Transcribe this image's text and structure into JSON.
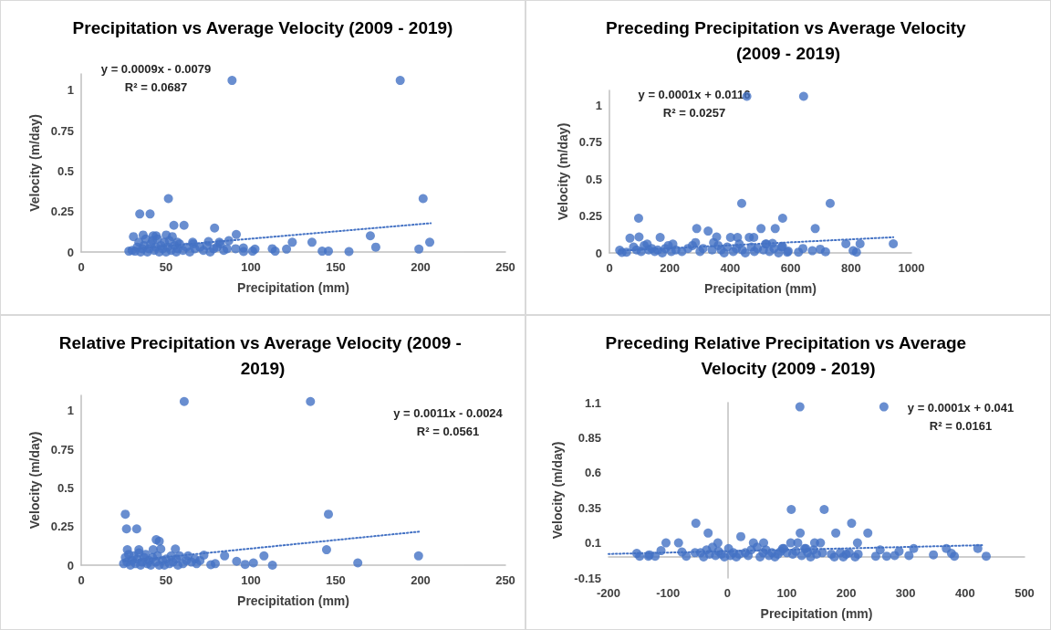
{
  "chart_data": [
    {
      "type": "scatter",
      "title": "Precipitation vs Average Velocity (2009 - 2019)",
      "xlabel": "Precipitation (mm)",
      "ylabel": "Velocity (m/day)",
      "xlim": [
        0,
        250
      ],
      "xticks": [
        0,
        50,
        100,
        150,
        200,
        250
      ],
      "ylim": [
        0,
        1.1
      ],
      "yticks": [
        0,
        0.25,
        0.5,
        0.75,
        1
      ],
      "annotations": [
        "y = 0.0009x - 0.0079",
        "R² = 0.0687"
      ],
      "series": [
        {
          "color": "#4472c4",
          "marker": "circle",
          "x": [
            88.9,
            188,
            51.4,
            201.5,
            34.5,
            40.6,
            54.6,
            60.6,
            78.6,
            91.4,
            170.4,
            173.6,
            199,
            205.4,
            136,
            124.4,
            121,
            112.6,
            114.3,
            142,
            145.7,
            157.8,
            102.4,
            101,
            95.6,
            95.7,
            91,
            87,
            81.4,
            75,
            65.7,
            30.8,
            36.5,
            42.4,
            44.2,
            50.1,
            53.7,
            56.7,
            28.1,
            31.7,
            30,
            33,
            34,
            35,
            36,
            37,
            38,
            39,
            40,
            41,
            42,
            43,
            44,
            45,
            46,
            47,
            48,
            49,
            50,
            51,
            52,
            53,
            55,
            56,
            57,
            58,
            60,
            62,
            64,
            66,
            67,
            70,
            72,
            74,
            76,
            78,
            80,
            82,
            84,
            86
          ],
          "values": [
            1.06,
            1.06,
            0.33,
            0.33,
            0.235,
            0.235,
            0.165,
            0.165,
            0.148,
            0.108,
            0.1,
            0.03,
            0.018,
            0.06,
            0.06,
            0.06,
            0.018,
            0.02,
            0.005,
            0.005,
            0.005,
            0.003,
            0.018,
            0.005,
            0.025,
            0.003,
            0.02,
            0.07,
            0.06,
            0.065,
            0.06,
            0.095,
            0.105,
            0.1,
            0.1,
            0.105,
            0.095,
            0.06,
            0.005,
            0.005,
            0.01,
            0.03,
            0.06,
            0,
            0.02,
            0.04,
            0.08,
            0,
            0.02,
            0.05,
            0.07,
            0.01,
            0.03,
            0.08,
            0,
            0.04,
            0.02,
            0.06,
            0,
            0.03,
            0.07,
            0.01,
            0.04,
            0,
            0.02,
            0.05,
            0.01,
            0.03,
            0,
            0.05,
            0.02,
            0.03,
            0.01,
            0.04,
            0,
            0.02,
            0.03,
            0.05,
            0.01,
            0.02
          ]
        },
        {
          "type": "line",
          "color": "#4472c4",
          "line_style": "dotted",
          "x": [
            28,
            206
          ],
          "values": [
            0.017,
            0.178
          ]
        }
      ]
    },
    {
      "type": "scatter",
      "title": "Preceding Precipitation vs Average Velocity (2009 - 2019)",
      "xlabel": "Precipitation (mm)",
      "ylabel": "Velocity (m/day)",
      "xlim": [
        0,
        1000
      ],
      "xticks": [
        0,
        200,
        400,
        600,
        800,
        1000
      ],
      "ylim": [
        0,
        1.1
      ],
      "yticks": [
        0,
        0.25,
        0.5,
        0.75,
        1
      ],
      "annotations": [
        "y = 0.0001x + 0.0116",
        "R² = 0.0257"
      ],
      "series": [
        {
          "color": "#4472c4",
          "marker": "circle",
          "x": [
            455,
            643,
            438,
            731,
            96.6,
            573.6,
            289,
            502,
            549,
            681.5,
            326.8,
            98,
            168,
            401,
            424,
            463,
            478,
            355,
            68,
            783,
            830,
            940,
            807,
            818,
            715.5,
            698,
            672,
            640.8,
            626,
            592,
            589,
            573,
            540,
            517,
            34,
            56.6,
            41.5,
            80,
            90,
            105,
            115,
            125,
            130,
            140,
            150,
            160,
            175,
            185,
            195,
            205,
            210,
            220,
            240,
            260,
            275,
            285,
            300,
            310,
            340,
            345,
            360,
            370,
            380,
            390,
            410,
            420,
            430,
            440,
            450,
            470,
            480,
            490,
            510,
            520,
            530,
            545,
            560,
            570
          ],
          "values": [
            1.06,
            1.06,
            0.335,
            0.335,
            0.235,
            0.235,
            0.165,
            0.165,
            0.165,
            0.165,
            0.148,
            0.108,
            0.105,
            0.105,
            0.105,
            0.105,
            0.105,
            0.108,
            0.1,
            0.062,
            0.062,
            0.062,
            0.015,
            0.005,
            0.008,
            0.025,
            0.015,
            0.03,
            0.005,
            0.012,
            0.005,
            0.045,
            0.065,
            0.06,
            0.018,
            0.005,
            0.003,
            0.04,
            0.02,
            0.01,
            0.05,
            0.06,
            0.02,
            0.03,
            0.01,
            0.02,
            0,
            0.03,
            0.05,
            0.01,
            0.06,
            0.02,
            0.01,
            0.03,
            0.05,
            0.07,
            0.01,
            0.03,
            0.02,
            0.07,
            0.05,
            0.02,
            0,
            0.04,
            0.01,
            0.03,
            0.06,
            0.02,
            0,
            0.04,
            0.01,
            0.03,
            0.02,
            0.06,
            0.01,
            0.03,
            0,
            0.04
          ]
        },
        {
          "type": "line",
          "color": "#4472c4",
          "line_style": "dotted",
          "x": [
            34,
            940
          ],
          "values": [
            0.015,
            0.106
          ]
        }
      ]
    },
    {
      "type": "scatter",
      "title": "Relative Precipitation vs Average Velocity (2009 - 2019)",
      "xlabel": "Precipitation (mm)",
      "ylabel": "Velocity (m/day)",
      "xlim": [
        0,
        250
      ],
      "xticks": [
        0,
        50,
        100,
        150,
        200,
        250
      ],
      "ylim": [
        0,
        1.1
      ],
      "yticks": [
        0,
        0.25,
        0.5,
        0.75,
        1
      ],
      "annotations": [
        "y = 0.0011x - 0.0024",
        "R² = 0.0561"
      ],
      "series": [
        {
          "color": "#4472c4",
          "marker": "circle",
          "x": [
            60.7,
            135.1,
            26,
            145.7,
            26.7,
            32.7,
            44.2,
            46,
            144.6,
            198.8,
            163,
            112.7,
            107.7,
            101.5,
            96.6,
            91.6,
            84.5,
            79,
            76.4,
            72.3,
            46.9,
            55.5,
            27.2,
            34,
            42.4,
            25,
            26,
            27,
            28,
            29,
            30,
            31,
            32,
            33,
            34,
            35,
            36,
            37,
            38,
            39,
            40,
            41,
            42,
            44,
            45,
            46,
            48,
            49,
            50,
            52,
            53,
            54,
            56,
            57,
            58,
            60,
            62,
            63,
            65,
            67,
            68,
            70
          ],
          "values": [
            1.06,
            1.06,
            0.33,
            0.33,
            0.235,
            0.235,
            0.165,
            0.155,
            0.1,
            0.06,
            0.015,
            0,
            0.06,
            0.015,
            0.005,
            0.025,
            0.06,
            0.01,
            0.003,
            0.065,
            0.105,
            0.105,
            0.1,
            0.1,
            0.1,
            0.01,
            0.05,
            0.02,
            0.07,
            0,
            0.03,
            0.06,
            0.01,
            0.04,
            0.08,
            0,
            0.02,
            0.05,
            0.07,
            0.01,
            0.03,
            0,
            0.05,
            0.02,
            0.06,
            0,
            0.03,
            0,
            0.04,
            0.01,
            0.06,
            0.02,
            0.04,
            0,
            0.06,
            0.01,
            0.03,
            0.06,
            0.02,
            0.04,
            0.01,
            0.03
          ]
        },
        {
          "type": "line",
          "color": "#4472c4",
          "line_style": "dotted",
          "x": [
            25,
            199
          ],
          "values": [
            0.025,
            0.217
          ]
        }
      ]
    },
    {
      "type": "scatter",
      "title": "Preceding Relative Precipitation vs Average Velocity (2009 - 2019)",
      "xlabel": "Precipitation (mm)",
      "ylabel": "Velocity (m/day)",
      "xlim": [
        -200,
        500
      ],
      "xticks": [
        -200,
        -100,
        0,
        100,
        200,
        300,
        400,
        500
      ],
      "ylim": [
        -0.15,
        1.1
      ],
      "yticks": [
        -0.15,
        0.1,
        0.35,
        0.6,
        0.85,
        1.1
      ],
      "annotations": [
        "y = 0.0001x + 0.041",
        "R² = 0.0161"
      ],
      "series": [
        {
          "color": "#4472c4",
          "marker": "circle",
          "x": [
            122,
            263.4,
            107.5,
            162.9,
            -53,
            209,
            -32.4,
            22.6,
            122.5,
            182.4,
            236.3,
            -103.3,
            -82.2,
            -16,
            43.8,
            61,
            106.6,
            118.4,
            146.8,
            156.6,
            218.9,
            -111.7,
            2,
            93,
            132,
            257,
            313.5,
            368.4,
            421.4,
            288.9,
            377,
            382,
            435.5,
            346.7,
            305.5,
            281.5,
            268,
            249.6,
            -152.5,
            -147.6,
            -132.9,
            -131.4,
            -121.6,
            -76.5,
            -69.2,
            -54.4,
            -45,
            -40,
            -35,
            -30,
            -25,
            -20,
            -15,
            -10,
            -5,
            5,
            10,
            15,
            20,
            30,
            35,
            40,
            50,
            55,
            60,
            65,
            70,
            75,
            80,
            85,
            90,
            95,
            100,
            110,
            115,
            125,
            130,
            135,
            140,
            145,
            150,
            160,
            175,
            180,
            190,
            195,
            200,
            205,
            215,
            220
          ],
          "values": [
            1.07,
            1.07,
            0.338,
            0.338,
            0.24,
            0.24,
            0.17,
            0.145,
            0.17,
            0.17,
            0.17,
            0.1,
            0.1,
            0.1,
            0.1,
            0.1,
            0.1,
            0.1,
            0.1,
            0.1,
            0.1,
            0.045,
            0.06,
            0.06,
            0.06,
            0.05,
            0.06,
            0.06,
            0.06,
            0.04,
            0.025,
            0.005,
            0.005,
            0.015,
            0.01,
            0.01,
            0.005,
            0.005,
            0.025,
            0.005,
            0.005,
            0.015,
            0.005,
            0.035,
            0.005,
            0.03,
            0.03,
            0,
            0.05,
            0.02,
            0.07,
            0.01,
            0.04,
            0.02,
            0,
            0.01,
            0.03,
            0,
            0.02,
            0.03,
            0.01,
            0.05,
            0.07,
            0,
            0.03,
            0.05,
            0.01,
            0.03,
            0,
            0.02,
            0.04,
            0.06,
            0.03,
            0.02,
            0.04,
            0.01,
            0.06,
            0.03,
            0,
            0.05,
            0.02,
            0.03,
            0.02,
            0,
            0.03,
            0,
            0.02,
            0.03,
            0,
            0.02
          ]
        },
        {
          "type": "line",
          "color": "#4472c4",
          "line_style": "dotted",
          "x": [
            -200,
            432
          ],
          "values": [
            0.021,
            0.084
          ]
        }
      ]
    }
  ]
}
